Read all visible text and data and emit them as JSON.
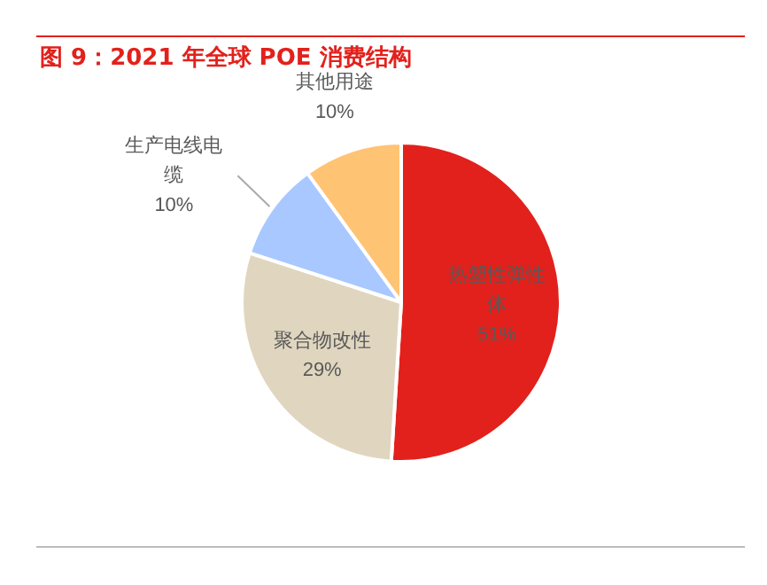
{
  "chart_data": {
    "type": "pie",
    "title": "图 9：2021 年全球 POE 消费结构",
    "categories": [
      "热塑性弹性体",
      "聚合物改性",
      "生产电线电缆",
      "其他用途"
    ],
    "values": [
      51,
      29,
      10,
      10
    ],
    "value_labels": [
      "51%",
      "29%",
      "10%",
      "10%"
    ],
    "colors": [
      "#e2211c",
      "#e0d6bf",
      "#a8c8ff",
      "#ffc374"
    ]
  }
}
